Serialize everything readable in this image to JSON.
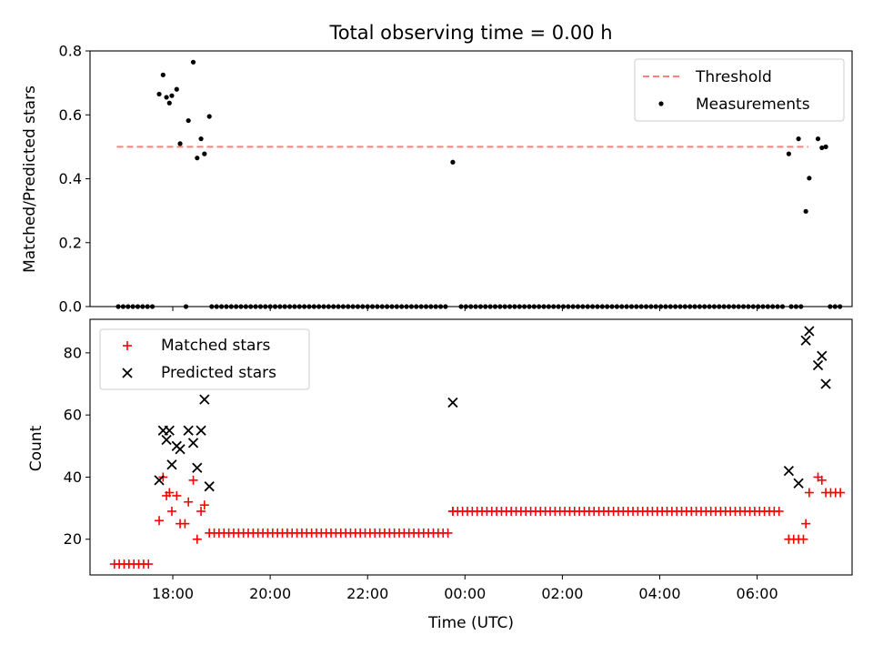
{
  "chart_data": [
    {
      "type": "scatter",
      "title": "Total observing time = 0.00 h",
      "ylabel": "Matched/Predicted stars",
      "xlabel": "",
      "xlim": [
        16.3,
        31.95
      ],
      "ylim": [
        0.0,
        0.8
      ],
      "yticks": [
        "0.0",
        "0.2",
        "0.4",
        "0.6",
        "0.8"
      ],
      "legend": "top-right",
      "threshold": {
        "name": "Threshold",
        "y": 0.5,
        "x_range": [
          16.85,
          31.05
        ],
        "color": "#ff7f7f",
        "style": "dashed"
      },
      "series": [
        {
          "name": "Measurements",
          "color": "#000000",
          "marker": "dot",
          "points": [
            [
              17.72,
              0.665
            ],
            [
              17.8,
              0.725
            ],
            [
              17.87,
              0.655
            ],
            [
              17.93,
              0.637
            ],
            [
              17.98,
              0.66
            ],
            [
              18.08,
              0.68
            ],
            [
              18.15,
              0.51
            ],
            [
              18.32,
              0.582
            ],
            [
              18.42,
              0.765
            ],
            [
              18.5,
              0.465
            ],
            [
              18.58,
              0.525
            ],
            [
              18.65,
              0.478
            ],
            [
              18.75,
              0.595
            ],
            [
              18.27,
              0.0
            ],
            [
              23.75,
              0.452
            ],
            [
              30.65,
              0.478
            ],
            [
              30.85,
              0.525
            ],
            [
              31.07,
              0.402
            ],
            [
              31.0,
              0.298
            ],
            [
              31.25,
              0.525
            ],
            [
              31.33,
              0.497
            ],
            [
              31.41,
              0.5
            ]
          ],
          "zero_runs": [
            {
              "start": 16.88,
              "end": 17.58,
              "step": 0.1
            },
            {
              "start": 18.8,
              "end": 23.66,
              "step": 0.1
            },
            {
              "start": 23.92,
              "end": 30.52,
              "step": 0.1
            },
            {
              "start": 30.7,
              "end": 30.95,
              "step": 0.1
            },
            {
              "start": 31.5,
              "end": 31.72,
              "step": 0.1
            }
          ]
        }
      ]
    },
    {
      "type": "scatter",
      "title": "",
      "ylabel": "Count",
      "xlabel": "Time (UTC)",
      "xlim": [
        16.3,
        31.95
      ],
      "ylim": [
        8.5,
        90.8
      ],
      "yticks": [
        "20",
        "40",
        "60",
        "80"
      ],
      "xticks": [
        "18:00",
        "20:00",
        "22:00",
        "00:00",
        "02:00",
        "04:00",
        "06:00"
      ],
      "legend": "top-left",
      "series": [
        {
          "name": "Matched stars",
          "color": "#ff0000",
          "marker": "plus",
          "points": [
            [
              17.72,
              26
            ],
            [
              17.8,
              40
            ],
            [
              17.87,
              34
            ],
            [
              17.93,
              35
            ],
            [
              17.98,
              29
            ],
            [
              18.08,
              34
            ],
            [
              18.15,
              25
            ],
            [
              18.25,
              25
            ],
            [
              18.32,
              32
            ],
            [
              18.42,
              39
            ],
            [
              18.5,
              20
            ],
            [
              18.58,
              29
            ],
            [
              18.65,
              31
            ],
            [
              23.75,
              29
            ],
            [
              30.65,
              20
            ],
            [
              31.0,
              25
            ],
            [
              31.07,
              35
            ],
            [
              31.25,
              40
            ],
            [
              31.33,
              39
            ]
          ],
          "runs": [
            {
              "start": 16.8,
              "end": 17.58,
              "step": 0.1,
              "y": 12
            },
            {
              "start": 18.75,
              "end": 23.66,
              "step": 0.1,
              "y": 22
            },
            {
              "start": 23.75,
              "end": 30.52,
              "step": 0.1,
              "y": 29
            },
            {
              "start": 30.65,
              "end": 30.95,
              "step": 0.1,
              "y": 20
            },
            {
              "start": 31.41,
              "end": 31.72,
              "step": 0.1,
              "y": 35
            }
          ]
        },
        {
          "name": "Predicted stars",
          "color": "#000000",
          "marker": "x",
          "points": [
            [
              17.72,
              39
            ],
            [
              17.8,
              55
            ],
            [
              17.87,
              52
            ],
            [
              17.93,
              55
            ],
            [
              17.98,
              44
            ],
            [
              18.08,
              50
            ],
            [
              18.15,
              49
            ],
            [
              18.32,
              55
            ],
            [
              18.42,
              51
            ],
            [
              18.5,
              43
            ],
            [
              18.58,
              55
            ],
            [
              18.65,
              65
            ],
            [
              18.75,
              37
            ],
            [
              23.75,
              64
            ],
            [
              30.65,
              42
            ],
            [
              30.85,
              38
            ],
            [
              31.0,
              84
            ],
            [
              31.07,
              87
            ],
            [
              31.25,
              76
            ],
            [
              31.33,
              79
            ],
            [
              31.41,
              70
            ]
          ]
        }
      ]
    }
  ]
}
